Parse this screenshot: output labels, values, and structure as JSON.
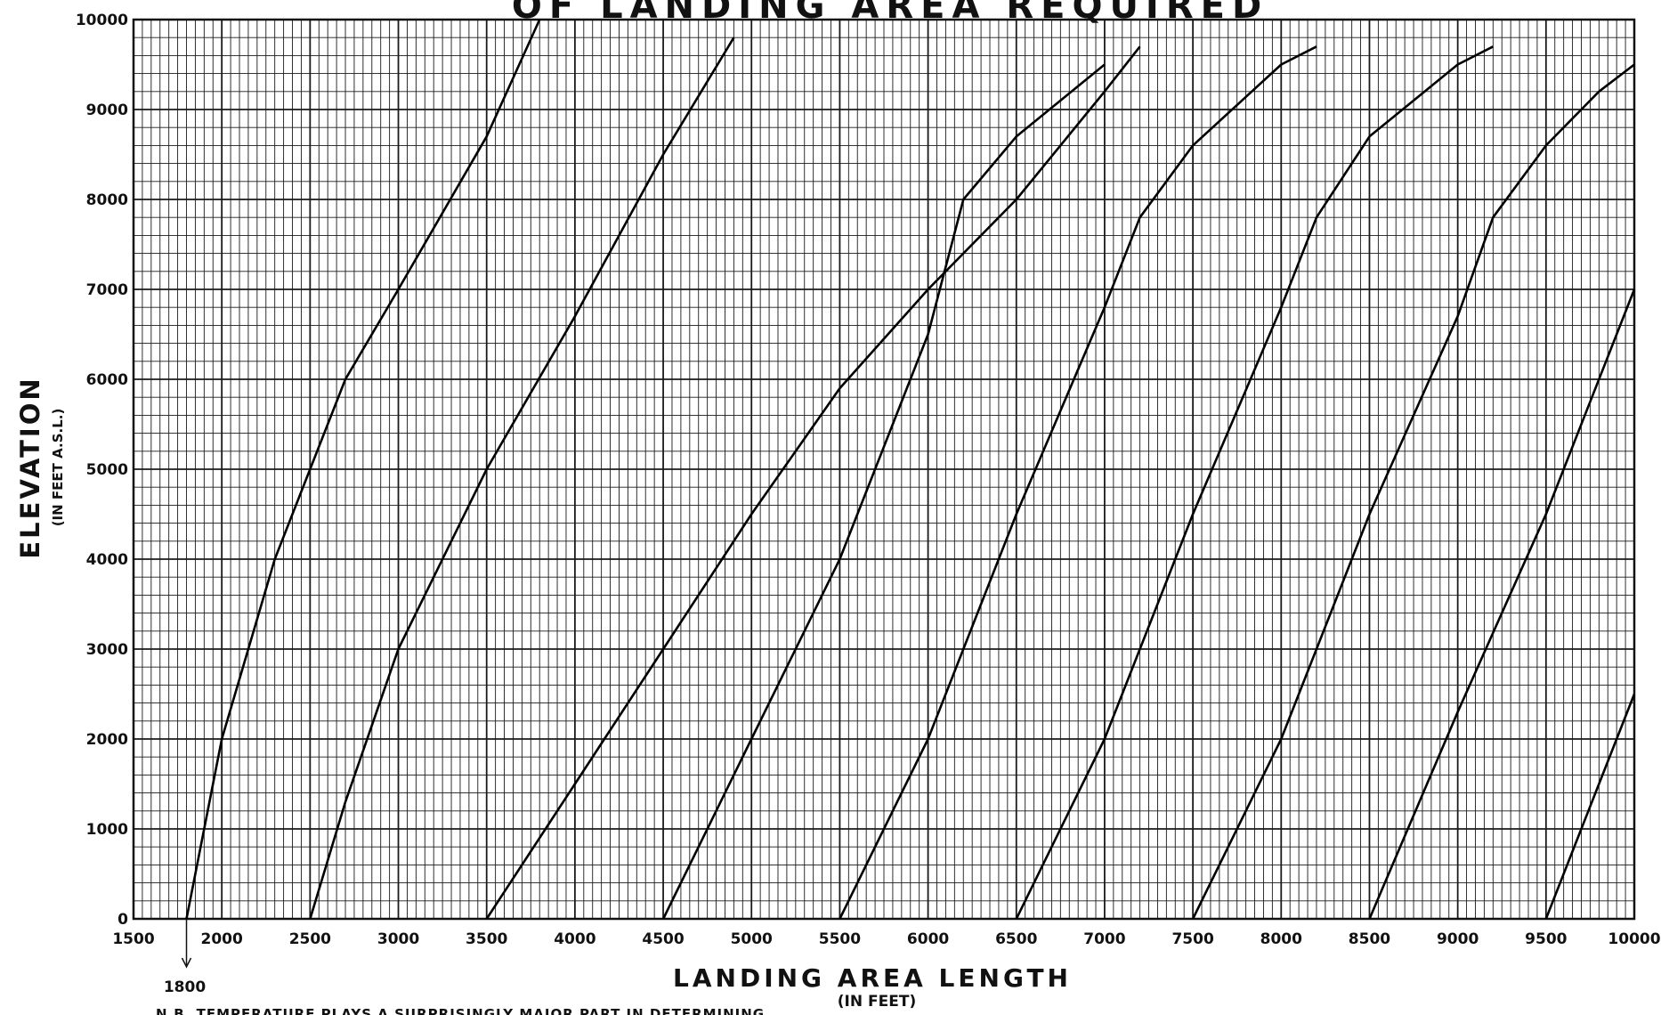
{
  "chart_data": {
    "type": "line",
    "title": "OF LANDING AREA REQUIRED",
    "xlabel": "LANDING AREA LENGTH",
    "xlabel_unit": "(IN FEET)",
    "ylabel": "ELEVATION",
    "ylabel_unit": "(IN FEET A.S.L.)",
    "xlim": [
      1500,
      10000
    ],
    "ylim": [
      0,
      10000
    ],
    "x_ticks": [
      "1500",
      "2000",
      "2500",
      "3000",
      "3500",
      "4000",
      "4500",
      "5000",
      "5500",
      "6000",
      "6500",
      "7000",
      "7500",
      "8000",
      "8500",
      "9000",
      "9500",
      "10000"
    ],
    "y_ticks": [
      "0",
      "1000",
      "2000",
      "3000",
      "4000",
      "5000",
      "6000",
      "7000",
      "8000",
      "9000",
      "10000"
    ],
    "marked_value": "1800",
    "footnote": "N.B. TEMPERATURE PLAYS A SURPRISINGLY MAJOR PART IN DETERMINING",
    "grid": true,
    "grid_minor_x": 50,
    "grid_minor_y": 200,
    "series": [
      {
        "x": [
          1800,
          2000,
          2300,
          2700,
          3000,
          3500,
          3800
        ],
        "y": [
          0,
          2000,
          4000,
          6000,
          7000,
          8700,
          10000
        ]
      },
      {
        "x": [
          2500,
          2700,
          3000,
          3500,
          4000,
          4500,
          4900
        ],
        "y": [
          0,
          1300,
          3000,
          5000,
          6700,
          8500,
          9800
        ]
      },
      {
        "x": [
          3500,
          4000,
          4500,
          5000,
          5500,
          6000,
          6500,
          7000,
          7200
        ],
        "y": [
          0,
          1500,
          3000,
          4500,
          5900,
          7000,
          8000,
          9200,
          9700
        ]
      },
      {
        "x": [
          4500,
          5000,
          5500,
          6000,
          6200,
          6500,
          7000
        ],
        "y": [
          0,
          2000,
          4000,
          6500,
          8000,
          8700,
          9500
        ]
      },
      {
        "x": [
          5500,
          6000,
          6500,
          7000,
          7200,
          7500,
          8000,
          8200
        ],
        "y": [
          0,
          2000,
          4500,
          6800,
          7800,
          8600,
          9500,
          9700
        ]
      },
      {
        "x": [
          6500,
          7000,
          7500,
          8000,
          8200,
          8500,
          9000,
          9200
        ],
        "y": [
          0,
          2000,
          4500,
          6800,
          7800,
          8700,
          9500,
          9700
        ]
      },
      {
        "x": [
          7500,
          8000,
          8500,
          9000,
          9200,
          9500,
          9800,
          10000
        ],
        "y": [
          0,
          2000,
          4500,
          6700,
          7800,
          8600,
          9200,
          9500
        ]
      },
      {
        "x": [
          8500,
          9000,
          9500,
          10000
        ],
        "y": [
          0,
          2300,
          4500,
          7000
        ]
      },
      {
        "x": [
          9500,
          10000
        ],
        "y": [
          0,
          2500
        ]
      }
    ]
  }
}
